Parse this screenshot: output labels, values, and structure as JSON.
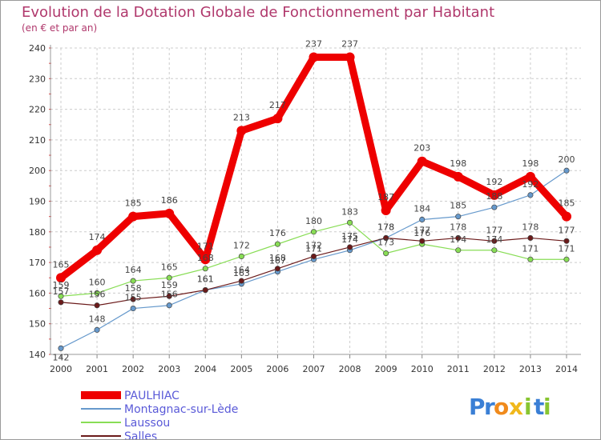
{
  "chart_data": {
    "type": "line",
    "title": "Evolution de la Dotation Globale de Fonctionnement par Habitant",
    "subtitle": "(en € et par an)",
    "categories": [
      "2000",
      "2001",
      "2002",
      "2003",
      "2004",
      "2005",
      "2006",
      "2007",
      "2008",
      "2009",
      "2010",
      "2011",
      "2012",
      "2013",
      "2014"
    ],
    "y_ticks": [
      "140",
      "150",
      "160",
      "170",
      "180",
      "190",
      "200",
      "210",
      "220",
      "230",
      "240"
    ],
    "ylim": [
      140,
      240
    ],
    "grid": "horizontal dashed",
    "series": [
      {
        "name": "PAULHIAC",
        "color": "#ee0000",
        "values": [
          165,
          174,
          185,
          186,
          171,
          213,
          217,
          237,
          237,
          187,
          203,
          198,
          192,
          198,
          185
        ]
      },
      {
        "name": "Montagnac-sur-Lède",
        "color": "#6699cc",
        "values": [
          142,
          148,
          155,
          156,
          161,
          163,
          167,
          171,
          174,
          178,
          184,
          185,
          188,
          192,
          200
        ]
      },
      {
        "name": "Laussou",
        "color": "#88dd55",
        "values": [
          159,
          160,
          164,
          165,
          168,
          172,
          176,
          180,
          183,
          173,
          176,
          174,
          174,
          171,
          171
        ]
      },
      {
        "name": "Salles",
        "color": "#6b1a1a",
        "values": [
          157,
          156,
          158,
          159,
          161,
          164,
          168,
          172,
          175,
          178,
          177,
          178,
          177,
          178,
          177
        ]
      }
    ]
  },
  "logo": {
    "letters": [
      "P",
      "r",
      "o",
      "x",
      "i",
      "t",
      "i"
    ],
    "colors": [
      "#3a7fd5",
      "#3a7fd5",
      "#f08a1c",
      "#f0b81c",
      "#88c531",
      "#3a7fd5",
      "#88c531"
    ]
  }
}
